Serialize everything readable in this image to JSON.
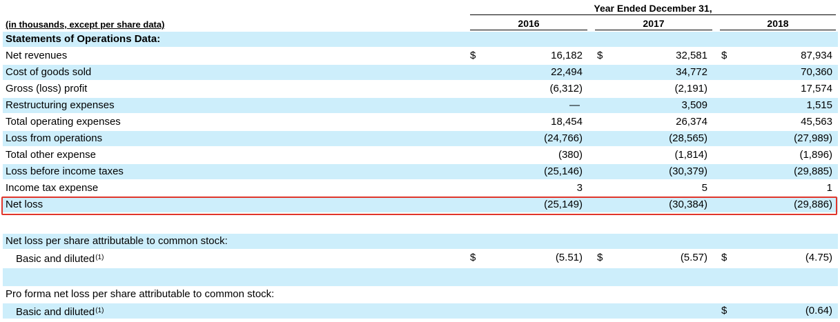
{
  "header": {
    "period_title": "Year Ended December 31,",
    "unit_label": "(in thousands, except per share data)",
    "years": [
      "2016",
      "2017",
      "2018"
    ]
  },
  "currency_symbol": "$",
  "footnote_marker": "(1)",
  "rows": [
    {
      "label": "Statements of Operations Data:"
    },
    {
      "label": "Net revenues",
      "values": [
        "16,182",
        "32,581",
        "87,934"
      ]
    },
    {
      "label": "Cost of goods sold",
      "values": [
        "22,494",
        "34,772",
        "70,360"
      ]
    },
    {
      "label": "Gross (loss) profit",
      "values": [
        "(6,312)",
        "(2,191)",
        "17,574"
      ]
    },
    {
      "label": "Restructuring expenses",
      "values": [
        "—",
        "3,509",
        "1,515"
      ]
    },
    {
      "label": "Total operating expenses",
      "values": [
        "18,454",
        "26,374",
        "45,563"
      ]
    },
    {
      "label": "Loss from operations",
      "values": [
        "(24,766)",
        "(28,565)",
        "(27,989)"
      ]
    },
    {
      "label": "Total other expense",
      "values": [
        "(380)",
        "(1,814)",
        "(1,896)"
      ]
    },
    {
      "label": "Loss before income taxes",
      "values": [
        "(25,146)",
        "(30,379)",
        "(29,885)"
      ]
    },
    {
      "label": "Income tax expense",
      "values": [
        "3",
        "5",
        "1"
      ]
    },
    {
      "label": "Net loss",
      "values": [
        "(25,149)",
        "(30,384)",
        "(29,886)"
      ]
    },
    {
      "label": "Net loss per share attributable to common stock:"
    },
    {
      "label": "Basic and diluted",
      "values": [
        "(5.51)",
        "(5.57)",
        "(4.75)"
      ]
    },
    {
      "label": "Pro forma net loss per share attributable to common stock:"
    },
    {
      "label": "Basic and diluted",
      "values": [
        "",
        "",
        "(0.64)"
      ]
    }
  ],
  "highlight_color": "#e0352b",
  "shade_color": "#cdeefb"
}
